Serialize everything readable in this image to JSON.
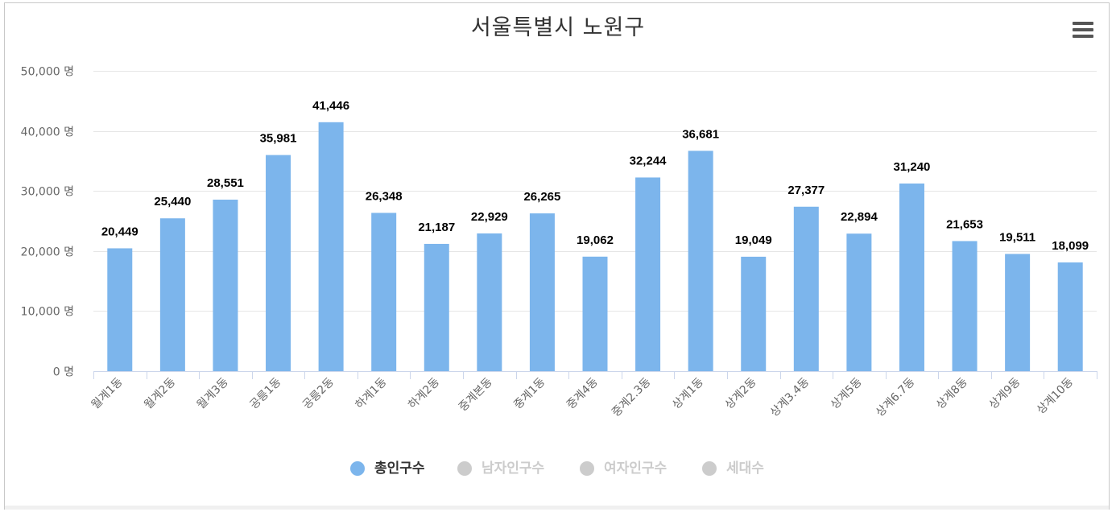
{
  "chart_data": {
    "type": "bar",
    "title": "서울특별시 노원구",
    "categories": [
      "월계1동",
      "월계2동",
      "월계3동",
      "공릉1동",
      "공릉2동",
      "하계1동",
      "하계2동",
      "중계본동",
      "중계1동",
      "중계4동",
      "중계2.3동",
      "상계1동",
      "상계2동",
      "상계3.4동",
      "상계5동",
      "상계6.7동",
      "상계8동",
      "상계9동",
      "상계10동"
    ],
    "series": [
      {
        "name": "총인구수",
        "values": [
          20449,
          25440,
          28551,
          35981,
          41446,
          26348,
          21187,
          22929,
          26265,
          19062,
          32244,
          36681,
          19049,
          27377,
          22894,
          31240,
          21653,
          19511,
          18099
        ],
        "visible": true
      }
    ],
    "data_labels": [
      "20,449",
      "25,440",
      "28,551",
      "35,981",
      "41,446",
      "26,348",
      "21,187",
      "22,929",
      "26,265",
      "19,062",
      "32,244",
      "36,681",
      "19,049",
      "27,377",
      "22,894",
      "31,240",
      "21,653",
      "19,511",
      "18,099"
    ],
    "y_ticks": [
      0,
      10000,
      20000,
      30000,
      40000,
      50000
    ],
    "y_tick_labels": [
      "0 명",
      "10,000 명",
      "20,000 명",
      "30,000 명",
      "40,000 명",
      "50,000 명"
    ],
    "ylim": [
      0,
      50000
    ],
    "xlabel": "",
    "ylabel": "",
    "grid": true,
    "legend_position": "bottom-center"
  },
  "legend": {
    "items": [
      {
        "label": "총인구수",
        "active": true
      },
      {
        "label": "남자인구수",
        "active": false
      },
      {
        "label": "여자인구수",
        "active": false
      },
      {
        "label": "세대수",
        "active": false
      }
    ]
  },
  "colors": {
    "bar": "#7cb5ec",
    "grid": "#e6e6e6",
    "axis": "#ccd6eb",
    "tick_text": "#666666",
    "label_text": "#000000",
    "legend_active": "#333333",
    "legend_inactive": "#cccccc"
  },
  "menu": {
    "icon": "hamburger-menu-icon"
  }
}
